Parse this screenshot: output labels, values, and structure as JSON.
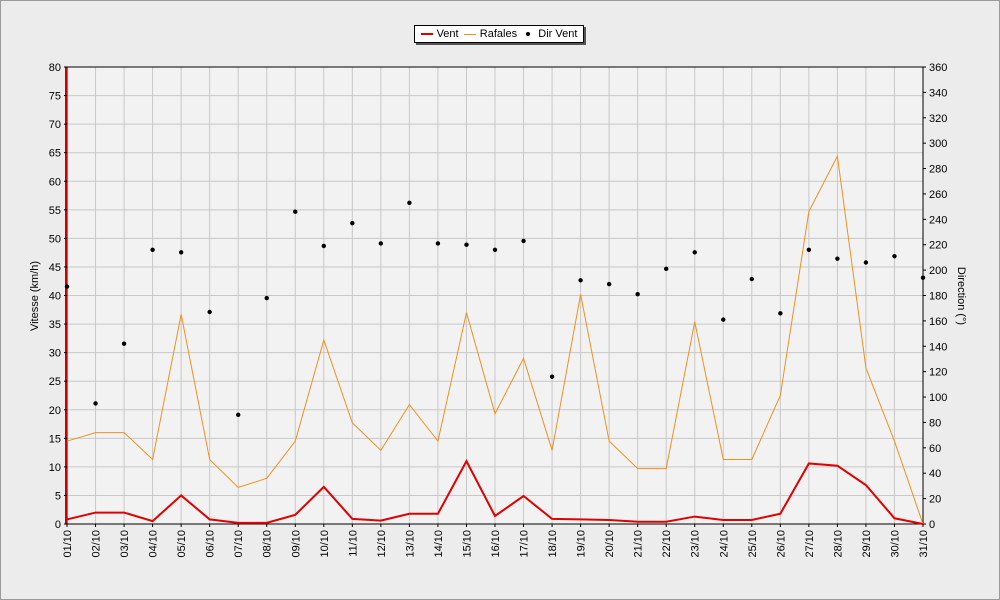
{
  "chart_data": {
    "type": "line",
    "categories": [
      "01/10",
      "02/10",
      "03/10",
      "04/10",
      "05/10",
      "06/10",
      "07/10",
      "08/10",
      "09/10",
      "10/10",
      "11/10",
      "12/10",
      "13/10",
      "14/10",
      "15/10",
      "16/10",
      "17/10",
      "18/10",
      "19/10",
      "20/10",
      "21/10",
      "22/10",
      "23/10",
      "24/10",
      "25/10",
      "26/10",
      "27/10",
      "28/10",
      "29/10",
      "30/10",
      "31/10"
    ],
    "ylabel": "Vitesse (km/h)",
    "ylabel_right": "Direction (°)",
    "ylim": [
      0,
      80
    ],
    "ylim_right": [
      0,
      360
    ],
    "yticks": [
      0,
      5,
      10,
      15,
      20,
      25,
      30,
      35,
      40,
      45,
      50,
      55,
      60,
      65,
      70,
      75,
      80
    ],
    "yticks_right": [
      0,
      20,
      40,
      60,
      80,
      100,
      120,
      140,
      160,
      180,
      200,
      220,
      240,
      260,
      280,
      300,
      320,
      340,
      360
    ],
    "grid": true,
    "legend_position": "top-center",
    "series": [
      {
        "name": "Vent",
        "type": "line",
        "axis": "left",
        "color": "#e00000",
        "values": [
          0.8,
          2,
          2,
          0.5,
          5,
          0.8,
          0.2,
          0.2,
          1.6,
          6.5,
          0.9,
          0.6,
          1.8,
          1.8,
          11,
          1.4,
          4.9,
          0.9,
          0.8,
          0.7,
          0.4,
          0.4,
          1.3,
          0.7,
          0.7,
          1.8,
          10.6,
          10.2,
          6.8,
          1,
          0
        ]
      },
      {
        "name": "Rafales",
        "type": "line",
        "axis": "left",
        "color": "#f0901e",
        "values": [
          14.5,
          16,
          16,
          11.3,
          36.7,
          11.3,
          6.4,
          8,
          14.5,
          32.2,
          17.7,
          12.9,
          20.9,
          14.5,
          37,
          19.3,
          29,
          12.9,
          40.2,
          14.5,
          9.7,
          9.7,
          35.4,
          11.3,
          11.3,
          22.5,
          54.7,
          64.4,
          27.3,
          14.5,
          0
        ]
      },
      {
        "name": "Dir Vent",
        "type": "scatter",
        "axis": "right",
        "color": "#000000",
        "values": [
          187,
          95,
          142,
          216,
          214,
          167,
          86,
          178,
          246,
          219,
          237,
          221,
          253,
          221,
          220,
          216,
          223,
          116,
          192,
          189,
          181,
          201,
          214,
          161,
          193,
          166,
          216,
          209,
          206,
          211,
          194
        ]
      }
    ]
  }
}
